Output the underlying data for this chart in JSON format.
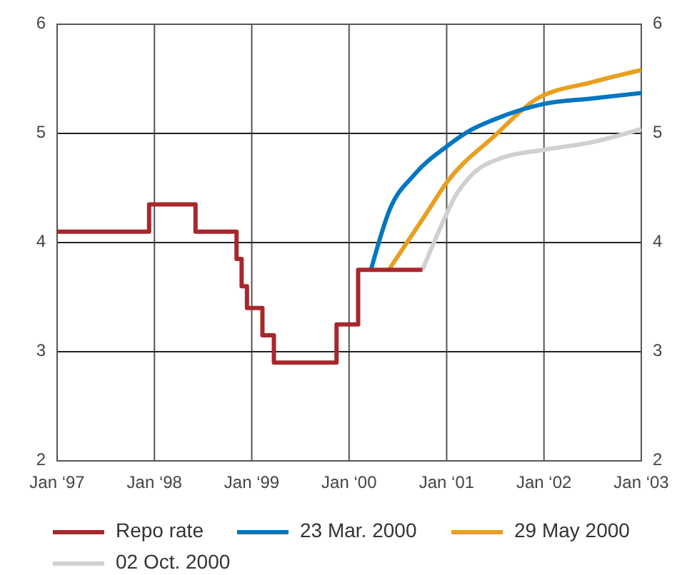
{
  "chart_data": {
    "type": "line",
    "legend": "bottom",
    "grid": true,
    "xlim": [
      "1997-01-01",
      "2003-01-01"
    ],
    "xticks": [
      {
        "value": "1997-01-01",
        "label": "Jan ‘97"
      },
      {
        "value": "1998-01-01",
        "label": "Jan ‘98"
      },
      {
        "value": "1999-01-01",
        "label": "Jan ‘99"
      },
      {
        "value": "2000-01-01",
        "label": "Jan ‘00"
      },
      {
        "value": "2001-01-01",
        "label": "Jan ‘01"
      },
      {
        "value": "2002-01-01",
        "label": "Jan ‘02"
      },
      {
        "value": "2003-01-01",
        "label": "Jan ‘03"
      }
    ],
    "ylim": [
      2,
      6
    ],
    "yticks": [
      2,
      3,
      4,
      5,
      6
    ],
    "y2lim": [
      2,
      6
    ],
    "y2ticks": [
      2,
      3,
      4,
      5,
      6
    ],
    "series": [
      {
        "name": "Repo rate",
        "type": "step",
        "color": "#a8272d",
        "x": [
          "1997-01-01",
          "1997-12-12",
          "1998-06-04",
          "1998-11-05",
          "1998-11-24",
          "1998-12-14",
          "1999-02-10",
          "1999-03-25",
          "1999-11-15",
          "2000-02-04",
          "2000-10-02"
        ],
        "values": [
          4.1,
          4.35,
          4.1,
          3.85,
          3.6,
          3.4,
          3.15,
          2.9,
          3.25,
          3.75,
          3.75
        ]
      },
      {
        "name": "23 Mar. 2000",
        "type": "line",
        "color": "#0077c0",
        "x": [
          "2000-03-23",
          "2000-06-01",
          "2000-09-01",
          "2001-01-01",
          "2001-04-01",
          "2001-07-01",
          "2002-01-01",
          "2002-07-01",
          "2003-01-01"
        ],
        "values": [
          3.75,
          4.3,
          4.62,
          4.88,
          5.03,
          5.13,
          5.27,
          5.32,
          5.37
        ]
      },
      {
        "name": "29 May 2000",
        "type": "line",
        "color": "#e8a020",
        "x": [
          "2000-05-29",
          "2000-10-15",
          "2001-01-01",
          "2001-07-01",
          "2001-12-01",
          "2002-07-01",
          "2003-01-01"
        ],
        "values": [
          3.75,
          4.26,
          4.55,
          4.98,
          5.31,
          5.47,
          5.58
        ]
      },
      {
        "name": "02 Oct. 2000",
        "type": "line",
        "color": "#d0d0d0",
        "x": [
          "2000-10-02",
          "2000-12-20",
          "2001-02-01",
          "2001-04-01",
          "2001-08-01",
          "2002-01-01",
          "2002-07-01",
          "2003-01-01"
        ],
        "values": [
          3.75,
          4.2,
          4.42,
          4.61,
          4.78,
          4.85,
          4.92,
          5.04
        ]
      }
    ]
  }
}
